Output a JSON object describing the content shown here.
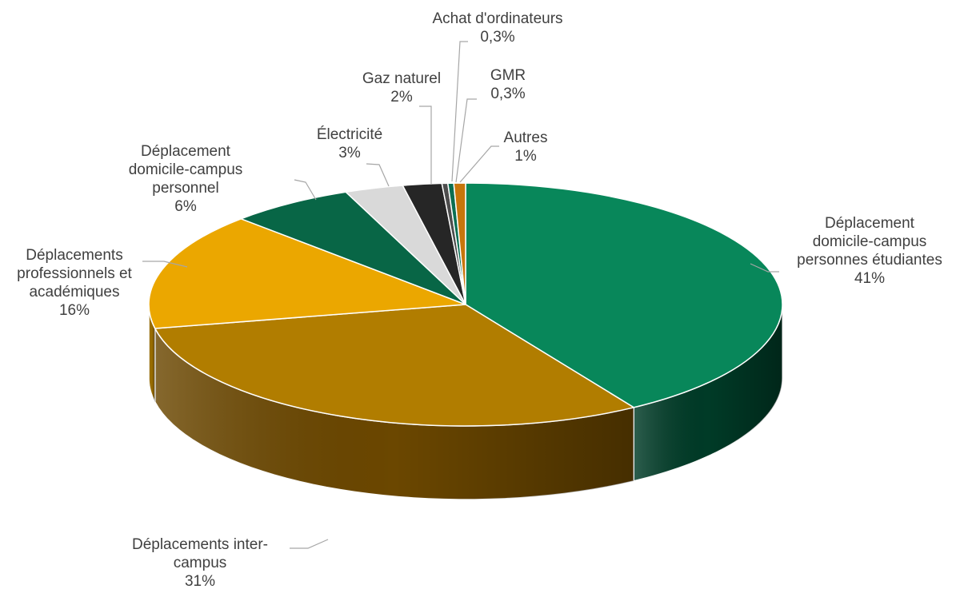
{
  "chart_data": {
    "type": "pie",
    "style": "3d",
    "slices": [
      {
        "label": [
          "Déplacement",
          "domicile-campus",
          "personnes étudiantes"
        ],
        "pct_label": "41%",
        "value": 41.3,
        "color": "#08875a",
        "side_color": "#003b27"
      },
      {
        "label": [
          "Déplacements inter-",
          "campus"
        ],
        "pct_label": "31%",
        "value": 30.9,
        "color": "#b17d00",
        "side_color": "#6b4700"
      },
      {
        "label": [
          "Déplacements",
          "professionnels et",
          "académiques"
        ],
        "pct_label": "16%",
        "value": 15.7,
        "color": "#eba700",
        "side_color": "#9a6d00"
      },
      {
        "label": [
          "Déplacement",
          "domicile-campus",
          "personnel"
        ],
        "pct_label": "6%",
        "value": 6.4,
        "color": "#086646",
        "side_color": "#003421"
      },
      {
        "label": [
          "Électricité"
        ],
        "pct_label": "3%",
        "value": 3.0,
        "color": "#d9d9d9",
        "side_color": "#9c9c9c"
      },
      {
        "label": [
          "Gaz naturel"
        ],
        "pct_label": "2%",
        "value": 2.0,
        "color": "#262626",
        "side_color": "#121212"
      },
      {
        "label": [
          "Achat d'ordinateurs"
        ],
        "pct_label": "0,3%",
        "value": 0.3,
        "color": "#4d4d4d",
        "side_color": "#2b2b2b"
      },
      {
        "label": [
          "GMR"
        ],
        "pct_label": "0,3%",
        "value": 0.3,
        "color": "#0b6e52",
        "side_color": "#04382a"
      },
      {
        "label": [
          "Autres"
        ],
        "pct_label": "1%",
        "value": 0.6,
        "color": "#c7760c",
        "side_color": "#7a4605"
      }
    ]
  }
}
